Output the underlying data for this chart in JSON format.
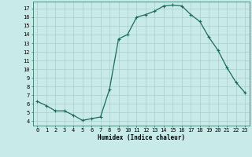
{
  "x": [
    0,
    1,
    2,
    3,
    4,
    5,
    6,
    7,
    8,
    9,
    10,
    11,
    12,
    13,
    14,
    15,
    16,
    17,
    18,
    19,
    20,
    21,
    22,
    23
  ],
  "y": [
    6.3,
    5.8,
    5.2,
    5.2,
    4.7,
    4.1,
    4.3,
    4.5,
    7.7,
    13.5,
    14.0,
    16.0,
    16.3,
    16.7,
    17.3,
    17.4,
    17.3,
    16.3,
    15.5,
    13.7,
    12.2,
    10.2,
    8.5,
    7.3
  ],
  "line_color": "#1a6b5e",
  "marker": "+",
  "markersize": 3,
  "linewidth": 0.9,
  "markeredgewidth": 0.8,
  "background_color": "#c8eae8",
  "grid_color": "#aacece",
  "xlabel": "Humidex (Indice chaleur)",
  "xlim": [
    -0.5,
    23.5
  ],
  "ylim": [
    3.5,
    17.8
  ],
  "yticks": [
    4,
    5,
    6,
    7,
    8,
    9,
    10,
    11,
    12,
    13,
    14,
    15,
    16,
    17
  ],
  "xticks": [
    0,
    1,
    2,
    3,
    4,
    5,
    6,
    7,
    8,
    9,
    10,
    11,
    12,
    13,
    14,
    15,
    16,
    17,
    18,
    19,
    20,
    21,
    22,
    23
  ],
  "axis_fontsize": 5.5,
  "tick_fontsize": 5.0
}
